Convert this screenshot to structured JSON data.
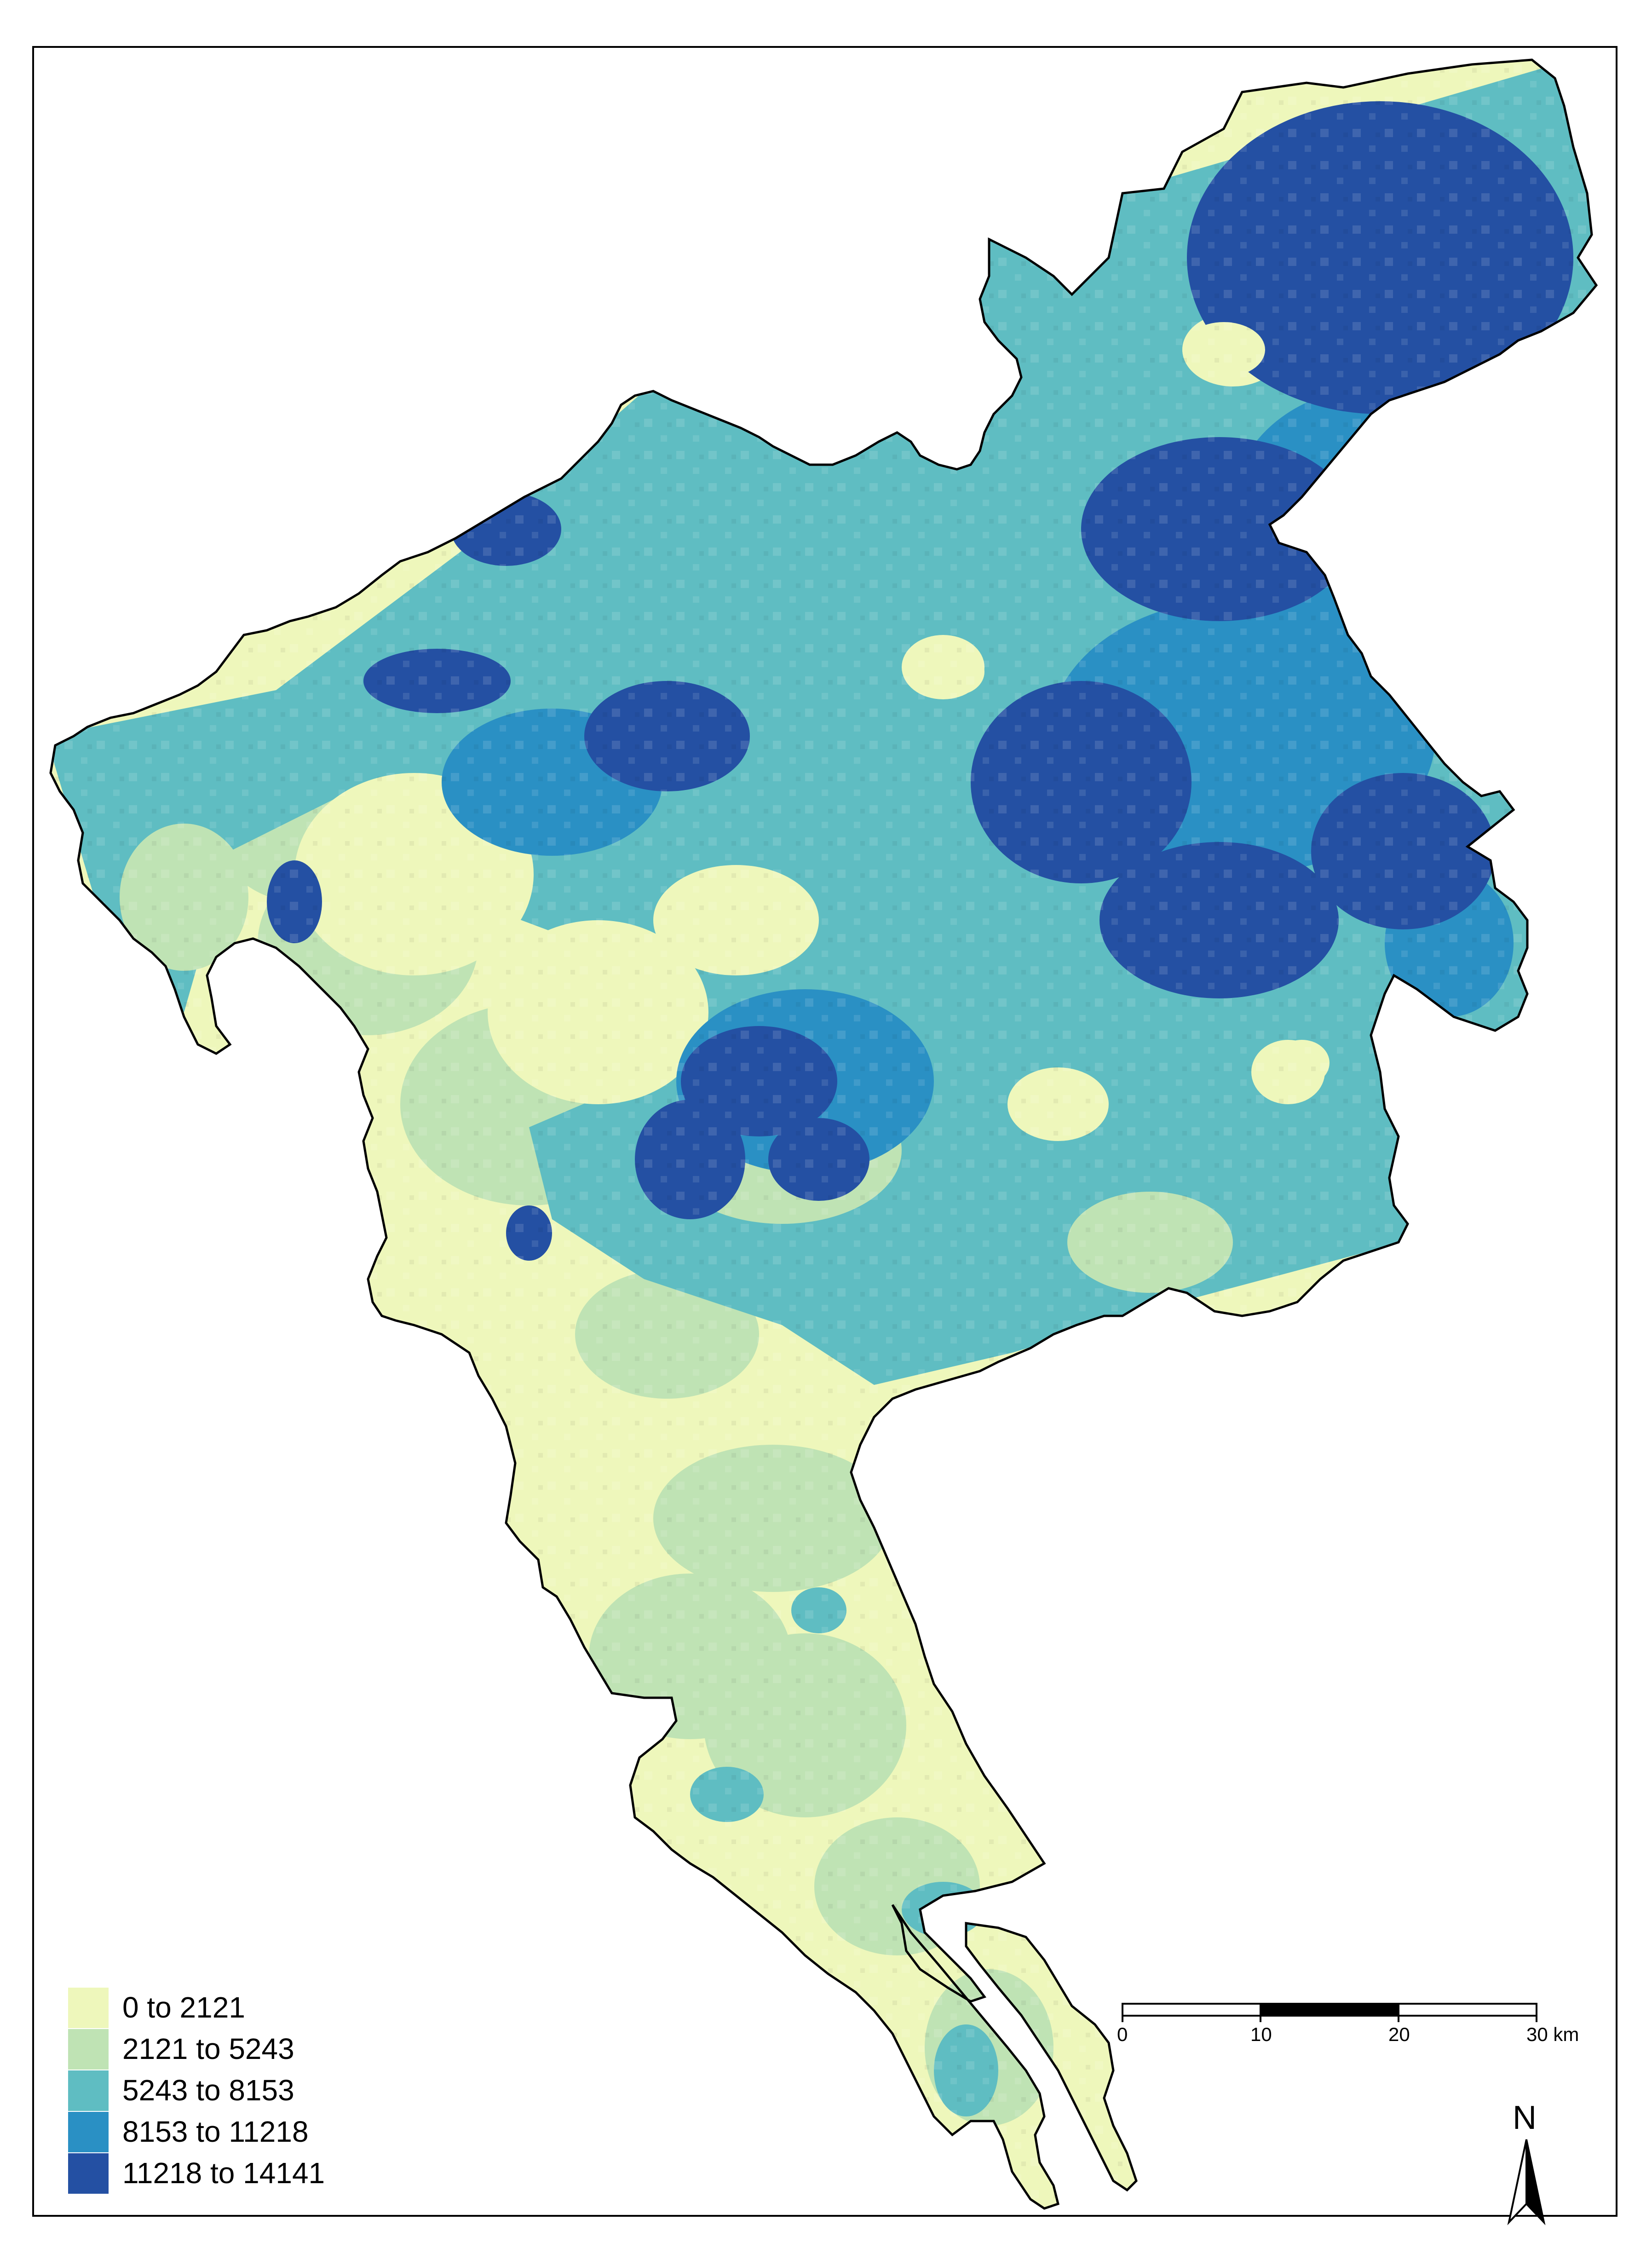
{
  "colors": {
    "class_1": "#eef7bb",
    "class_2": "#bfe3b4",
    "class_3": "#5fbdc2",
    "class_4": "#2a90c4",
    "class_5": "#2450a3",
    "outline": "#000000"
  },
  "legend": {
    "items": [
      {
        "label": "0 to 2121",
        "color": "#eef7bb"
      },
      {
        "label": "2121 to 5243",
        "color": "#bfe3b4"
      },
      {
        "label": "5243 to 8153",
        "color": "#5fbdc2"
      },
      {
        "label": "8153 to 11218",
        "color": "#2a90c4"
      },
      {
        "label": "11218 to 14141",
        "color": "#2450a3"
      }
    ]
  },
  "scale_bar": {
    "ticks": [
      "0",
      "10",
      "20",
      "30 km"
    ]
  },
  "north_arrow": {
    "label": "N",
    "icon": "north-arrow-icon"
  }
}
